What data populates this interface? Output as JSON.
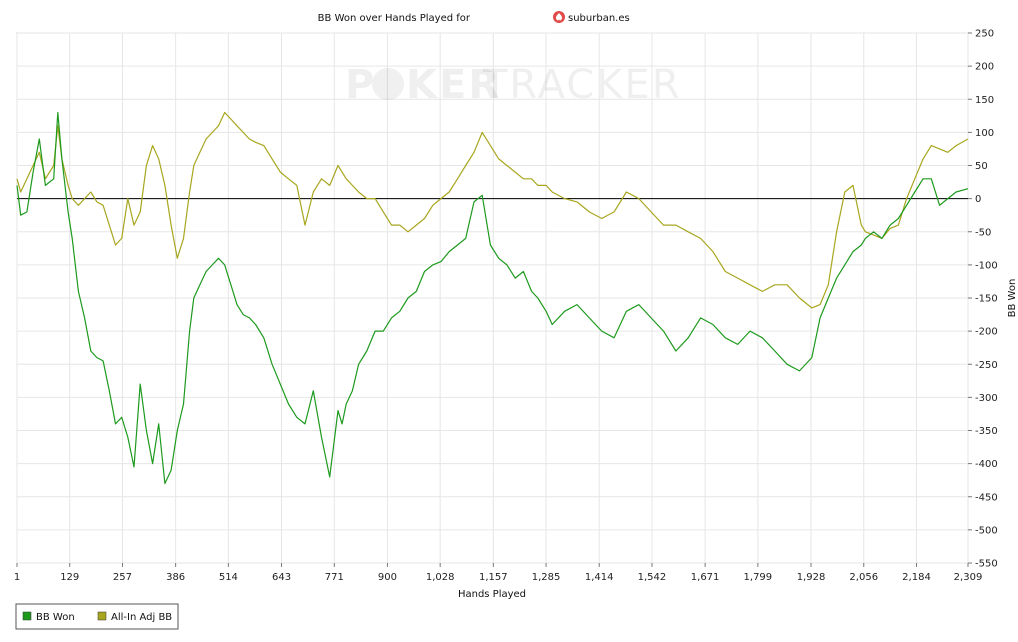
{
  "chart_data": {
    "type": "line",
    "title_prefix": "BB Won over Hands Played for",
    "player": "suburban.es",
    "watermark_a": "P",
    "watermark_b": "KER",
    "watermark_c": "TRACKER",
    "xlabel": "Hands Played",
    "ylabel": "BB Won",
    "xlim": [
      1,
      2309
    ],
    "ylim": [
      -550,
      250
    ],
    "x_ticks": [
      1,
      129,
      257,
      386,
      514,
      643,
      771,
      900,
      1028,
      1157,
      1285,
      1414,
      1542,
      1671,
      1799,
      1928,
      2056,
      2184,
      2309
    ],
    "x_tick_labels": [
      "1",
      "129",
      "257",
      "386",
      "514",
      "643",
      "771",
      "900",
      "1,028",
      "1,157",
      "1,285",
      "1,414",
      "1,542",
      "1,671",
      "1,799",
      "1,928",
      "2,056",
      "2,184",
      "2,309"
    ],
    "y_ticks": [
      250,
      200,
      150,
      100,
      50,
      0,
      -50,
      -100,
      -150,
      -200,
      -250,
      -300,
      -350,
      -400,
      -450,
      -500,
      -550
    ],
    "grid": true,
    "legend_position": "bottom-left",
    "series": [
      {
        "name": "BB Won",
        "color": "#1d9a1d",
        "x": [
          1,
          10,
          25,
          40,
          55,
          70,
          90,
          100,
          110,
          125,
          135,
          150,
          165,
          180,
          195,
          210,
          225,
          240,
          255,
          270,
          285,
          300,
          315,
          330,
          345,
          360,
          375,
          390,
          405,
          420,
          430,
          445,
          460,
          475,
          490,
          505,
          520,
          535,
          550,
          565,
          580,
          600,
          620,
          640,
          660,
          680,
          700,
          720,
          740,
          760,
          780,
          790,
          800,
          815,
          830,
          850,
          870,
          890,
          910,
          930,
          950,
          970,
          990,
          1010,
          1030,
          1050,
          1070,
          1090,
          1110,
          1130,
          1150,
          1170,
          1190,
          1210,
          1230,
          1250,
          1265,
          1285,
          1300,
          1330,
          1360,
          1390,
          1420,
          1450,
          1480,
          1510,
          1540,
          1570,
          1600,
          1630,
          1660,
          1690,
          1720,
          1750,
          1780,
          1810,
          1840,
          1870,
          1900,
          1930,
          1950,
          1970,
          1990,
          2010,
          2030,
          2050,
          2060,
          2080,
          2100,
          2120,
          2140,
          2160,
          2180,
          2200,
          2220,
          2240,
          2260,
          2280,
          2309
        ],
        "y": [
          20,
          -25,
          -20,
          40,
          90,
          20,
          30,
          130,
          60,
          -20,
          -60,
          -140,
          -180,
          -230,
          -240,
          -245,
          -290,
          -340,
          -330,
          -360,
          -405,
          -280,
          -350,
          -400,
          -340,
          -430,
          -410,
          -350,
          -310,
          -200,
          -150,
          -130,
          -110,
          -100,
          -90,
          -100,
          -130,
          -160,
          -175,
          -180,
          -190,
          -210,
          -250,
          -280,
          -310,
          -330,
          -340,
          -290,
          -360,
          -420,
          -320,
          -340,
          -310,
          -290,
          -250,
          -230,
          -200,
          -200,
          -180,
          -170,
          -150,
          -140,
          -110,
          -100,
          -95,
          -80,
          -70,
          -60,
          -5,
          5,
          -70,
          -90,
          -100,
          -120,
          -110,
          -140,
          -150,
          -170,
          -190,
          -170,
          -160,
          -180,
          -200,
          -210,
          -170,
          -160,
          -180,
          -200,
          -230,
          -210,
          -180,
          -190,
          -210,
          -220,
          -200,
          -210,
          -230,
          -250,
          -260,
          -240,
          -180,
          -150,
          -120,
          -100,
          -80,
          -70,
          -60,
          -50,
          -60,
          -40,
          -30,
          -10,
          10,
          30,
          30,
          -10,
          0,
          10,
          15
        ]
      },
      {
        "name": "All-In Adj BB",
        "color": "#a8a61e",
        "x": [
          1,
          10,
          25,
          40,
          55,
          70,
          90,
          100,
          110,
          125,
          135,
          150,
          165,
          180,
          195,
          210,
          225,
          240,
          255,
          270,
          285,
          300,
          315,
          330,
          345,
          360,
          375,
          390,
          405,
          420,
          430,
          445,
          460,
          475,
          490,
          505,
          520,
          535,
          550,
          565,
          580,
          600,
          620,
          640,
          660,
          680,
          700,
          720,
          740,
          760,
          780,
          790,
          800,
          815,
          830,
          850,
          870,
          890,
          910,
          930,
          950,
          970,
          990,
          1010,
          1030,
          1050,
          1070,
          1090,
          1110,
          1130,
          1150,
          1170,
          1190,
          1210,
          1230,
          1250,
          1265,
          1285,
          1300,
          1330,
          1360,
          1390,
          1420,
          1450,
          1480,
          1510,
          1540,
          1570,
          1600,
          1630,
          1660,
          1690,
          1720,
          1750,
          1780,
          1810,
          1840,
          1870,
          1900,
          1930,
          1950,
          1970,
          1990,
          2010,
          2030,
          2050,
          2060,
          2080,
          2100,
          2120,
          2140,
          2160,
          2180,
          2200,
          2220,
          2240,
          2260,
          2280,
          2309
        ],
        "y": [
          30,
          10,
          30,
          50,
          70,
          30,
          50,
          110,
          60,
          20,
          0,
          -10,
          0,
          10,
          -5,
          -10,
          -40,
          -70,
          -60,
          0,
          -40,
          -20,
          50,
          80,
          60,
          20,
          -40,
          -90,
          -60,
          10,
          50,
          70,
          90,
          100,
          110,
          130,
          120,
          110,
          100,
          90,
          85,
          80,
          60,
          40,
          30,
          20,
          -40,
          10,
          30,
          20,
          50,
          40,
          30,
          20,
          10,
          0,
          0,
          -20,
          -40,
          -40,
          -50,
          -40,
          -30,
          -10,
          0,
          10,
          30,
          50,
          70,
          100,
          80,
          60,
          50,
          40,
          30,
          30,
          20,
          20,
          10,
          0,
          -5,
          -20,
          -30,
          -20,
          10,
          0,
          -20,
          -40,
          -40,
          -50,
          -60,
          -80,
          -110,
          -120,
          -130,
          -140,
          -130,
          -130,
          -150,
          -165,
          -160,
          -130,
          -50,
          10,
          20,
          -40,
          -50,
          -55,
          -60,
          -45,
          -40,
          0,
          30,
          60,
          80,
          75,
          70,
          80,
          90
        ]
      }
    ]
  }
}
